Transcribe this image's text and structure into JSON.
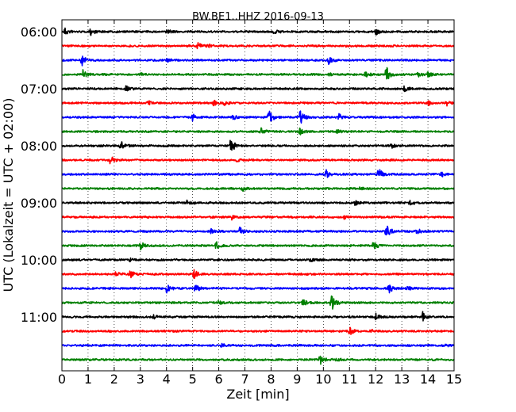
{
  "chart_data": {
    "type": "line",
    "title": "BW.BE1..HHZ 2016-09-13",
    "xlabel": "Zeit  [min]",
    "ylabel": "UTC (Lokalzeit = UTC + 02:00)",
    "xlim": [
      0,
      15
    ],
    "xticks": [
      0,
      1,
      2,
      3,
      4,
      5,
      6,
      7,
      8,
      9,
      10,
      11,
      12,
      13,
      14,
      15
    ],
    "yticklabels": [
      "06:00",
      "07:00",
      "08:00",
      "09:00",
      "10:00",
      "11:00"
    ],
    "grid": "vertical dotted",
    "trace_interval_min": 15,
    "trace_colors": [
      "#000000",
      "#ff0000",
      "#0000ff",
      "#008000"
    ],
    "traces": [
      {
        "start": "06:00",
        "color": "#000000",
        "events": [
          {
            "t": 0.1,
            "amp": 0.35
          },
          {
            "t": 1.1,
            "amp": 0.3
          },
          {
            "t": 4.0,
            "amp": 0.2
          },
          {
            "t": 8.1,
            "amp": 0.2
          },
          {
            "t": 12.0,
            "amp": 0.3
          }
        ]
      },
      {
        "start": "06:15",
        "color": "#ff0000",
        "events": [
          {
            "t": 5.2,
            "amp": 0.3
          },
          {
            "t": 5.6,
            "amp": 0.15
          }
        ]
      },
      {
        "start": "06:30",
        "color": "#0000ff",
        "events": [
          {
            "t": 0.75,
            "amp": 0.55
          },
          {
            "t": 4.0,
            "amp": 0.15
          },
          {
            "t": 10.2,
            "amp": 0.4
          }
        ]
      },
      {
        "start": "06:45",
        "color": "#008000",
        "events": [
          {
            "t": 0.8,
            "amp": 0.4
          },
          {
            "t": 3.0,
            "amp": 0.15
          },
          {
            "t": 10.2,
            "amp": 0.15
          },
          {
            "t": 11.6,
            "amp": 0.25
          },
          {
            "t": 12.4,
            "amp": 0.75
          },
          {
            "t": 13.6,
            "amp": 0.3
          },
          {
            "t": 14.0,
            "amp": 0.2
          }
        ]
      },
      {
        "start": "07:00",
        "color": "#000000",
        "events": [
          {
            "t": 2.45,
            "amp": 0.25
          },
          {
            "t": 13.1,
            "amp": 0.3
          }
        ]
      },
      {
        "start": "07:15",
        "color": "#ff0000",
        "events": [
          {
            "t": 3.3,
            "amp": 0.2
          },
          {
            "t": 5.8,
            "amp": 0.25
          },
          {
            "t": 6.2,
            "amp": 0.2
          },
          {
            "t": 14.0,
            "amp": 0.2
          },
          {
            "t": 14.7,
            "amp": 0.25
          }
        ]
      },
      {
        "start": "07:30",
        "color": "#0000ff",
        "events": [
          {
            "t": 5.0,
            "amp": 0.3
          },
          {
            "t": 6.5,
            "amp": 0.3
          },
          {
            "t": 7.9,
            "amp": 0.75
          },
          {
            "t": 9.1,
            "amp": 0.8
          },
          {
            "t": 10.6,
            "amp": 0.3
          }
        ]
      },
      {
        "start": "07:45",
        "color": "#008000",
        "events": [
          {
            "t": 7.6,
            "amp": 0.35
          },
          {
            "t": 9.1,
            "amp": 0.3
          },
          {
            "t": 10.5,
            "amp": 0.2
          }
        ]
      },
      {
        "start": "08:00",
        "color": "#000000",
        "events": [
          {
            "t": 2.25,
            "amp": 0.45
          },
          {
            "t": 6.45,
            "amp": 0.75
          },
          {
            "t": 12.6,
            "amp": 0.2
          }
        ]
      },
      {
        "start": "08:15",
        "color": "#ff0000",
        "events": [
          {
            "t": 1.85,
            "amp": 0.4
          },
          {
            "t": 6.7,
            "amp": 0.15
          }
        ]
      },
      {
        "start": "08:30",
        "color": "#0000ff",
        "events": [
          {
            "t": 10.1,
            "amp": 0.4
          },
          {
            "t": 12.1,
            "amp": 0.6
          },
          {
            "t": 14.5,
            "amp": 0.3
          }
        ]
      },
      {
        "start": "08:45",
        "color": "#008000",
        "events": [
          {
            "t": 6.9,
            "amp": 0.2
          },
          {
            "t": 11.4,
            "amp": 0.15
          }
        ]
      },
      {
        "start": "09:00",
        "color": "#000000",
        "events": [
          {
            "t": 4.75,
            "amp": 0.25
          },
          {
            "t": 11.2,
            "amp": 0.25
          },
          {
            "t": 13.3,
            "amp": 0.25
          }
        ]
      },
      {
        "start": "09:15",
        "color": "#ff0000",
        "events": [
          {
            "t": 6.5,
            "amp": 0.2
          },
          {
            "t": 10.8,
            "amp": 0.15
          }
        ]
      },
      {
        "start": "09:30",
        "color": "#0000ff",
        "events": [
          {
            "t": 5.7,
            "amp": 0.2
          },
          {
            "t": 6.8,
            "amp": 0.35
          },
          {
            "t": 12.4,
            "amp": 0.75
          },
          {
            "t": 13.55,
            "amp": 0.3
          }
        ]
      },
      {
        "start": "09:45",
        "color": "#008000",
        "events": [
          {
            "t": 3.0,
            "amp": 0.35
          },
          {
            "t": 5.9,
            "amp": 0.35
          },
          {
            "t": 11.9,
            "amp": 0.4
          }
        ]
      },
      {
        "start": "10:00",
        "color": "#000000",
        "events": [
          {
            "t": 2.6,
            "amp": 0.15
          },
          {
            "t": 9.5,
            "amp": 0.15
          }
        ]
      },
      {
        "start": "10:15",
        "color": "#ff0000",
        "events": [
          {
            "t": 2.05,
            "amp": 0.35
          },
          {
            "t": 2.6,
            "amp": 0.4
          },
          {
            "t": 5.05,
            "amp": 0.4
          }
        ]
      },
      {
        "start": "10:30",
        "color": "#0000ff",
        "events": [
          {
            "t": 4.0,
            "amp": 0.45
          },
          {
            "t": 5.1,
            "amp": 0.4
          },
          {
            "t": 12.5,
            "amp": 0.45
          },
          {
            "t": 13.2,
            "amp": 0.2
          }
        ]
      },
      {
        "start": "10:45",
        "color": "#008000",
        "events": [
          {
            "t": 6.0,
            "amp": 0.2
          },
          {
            "t": 9.2,
            "amp": 0.35
          },
          {
            "t": 10.3,
            "amp": 0.85
          }
        ]
      },
      {
        "start": "11:00",
        "color": "#000000",
        "events": [
          {
            "t": 3.5,
            "amp": 0.15
          },
          {
            "t": 12.0,
            "amp": 0.35
          },
          {
            "t": 13.8,
            "amp": 0.45
          }
        ]
      },
      {
        "start": "11:15",
        "color": "#ff0000",
        "events": [
          {
            "t": 11.0,
            "amp": 0.35
          },
          {
            "t": 11.8,
            "amp": 0.15
          }
        ]
      },
      {
        "start": "11:30",
        "color": "#0000ff",
        "events": [
          {
            "t": 6.1,
            "amp": 0.15
          },
          {
            "t": 14.7,
            "amp": 0.15
          }
        ]
      },
      {
        "start": "11:45",
        "color": "#008000",
        "events": [
          {
            "t": 9.85,
            "amp": 0.55
          },
          {
            "t": 10.5,
            "amp": 0.15
          }
        ]
      }
    ]
  }
}
